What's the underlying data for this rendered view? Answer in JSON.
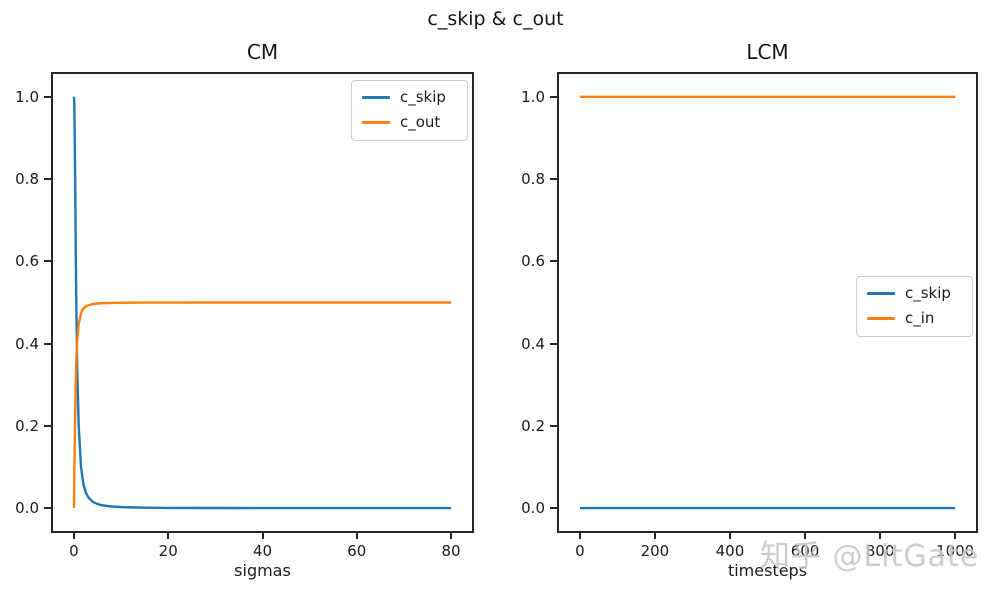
{
  "figure": {
    "suptitle": "c_skip & c_out",
    "watermark": "知乎 @LitGate",
    "colors": {
      "blue": "#1f77b4",
      "orange": "#ff7f0e",
      "text": "#1c1c1c",
      "spine": "#262626",
      "legend_border": "#cccccc",
      "watermark": "#c6c6c6"
    }
  },
  "chart_data": [
    {
      "type": "line",
      "title": "CM",
      "xlabel": "sigmas",
      "ylabel": "",
      "xlim": [
        0,
        80
      ],
      "ylim": [
        0.0,
        1.0
      ],
      "xticks": [
        0,
        20,
        40,
        60,
        80
      ],
      "yticks": [
        "0.0",
        "0.2",
        "0.4",
        "0.6",
        "0.8",
        "1.0"
      ],
      "grid": false,
      "legend_position": "upper right",
      "series": [
        {
          "name": "c_skip",
          "color": "#1f77b4",
          "x": [
            0,
            0.05,
            0.1,
            0.2,
            0.3,
            0.4,
            0.5,
            0.7,
            1,
            1.5,
            2,
            2.5,
            3,
            4,
            5,
            6,
            8,
            10,
            15,
            20,
            30,
            40,
            60,
            80
          ],
          "y": [
            1.0,
            0.9901,
            0.9615,
            0.8621,
            0.7353,
            0.6098,
            0.5,
            0.3378,
            0.2,
            0.1,
            0.0588,
            0.0385,
            0.027,
            0.0152,
            0.0099,
            0.0069,
            0.0039,
            0.0025,
            0.0011,
            0.0006,
            0.0003,
            0.0002,
            0.0001,
            0.0
          ]
        },
        {
          "name": "c_out",
          "color": "#ff7f0e",
          "x": [
            0,
            0.05,
            0.1,
            0.2,
            0.3,
            0.4,
            0.5,
            0.7,
            1,
            1.5,
            2,
            2.5,
            3,
            4,
            5,
            6,
            8,
            10,
            15,
            20,
            30,
            40,
            60,
            80
          ],
          "y": [
            0.0,
            0.0498,
            0.0981,
            0.1857,
            0.2572,
            0.3123,
            0.3536,
            0.4069,
            0.4472,
            0.4743,
            0.4851,
            0.4903,
            0.4932,
            0.4962,
            0.4975,
            0.4983,
            0.499,
            0.4994,
            0.4997,
            0.4998,
            0.4999,
            0.5,
            0.5,
            0.5
          ]
        }
      ]
    },
    {
      "type": "line",
      "title": "LCM",
      "xlabel": "timesteps",
      "ylabel": "",
      "xlim": [
        0,
        1000
      ],
      "ylim": [
        0.0,
        1.0
      ],
      "xticks": [
        0,
        200,
        400,
        600,
        800,
        1000
      ],
      "yticks": [
        "0.0",
        "0.2",
        "0.4",
        "0.6",
        "0.8",
        "1.0"
      ],
      "grid": false,
      "legend_position": "center right",
      "series": [
        {
          "name": "c_skip",
          "color": "#1f77b4",
          "x": [
            0,
            1000
          ],
          "y": [
            0.0,
            0.0
          ]
        },
        {
          "name": "c_in",
          "color": "#ff7f0e",
          "x": [
            0,
            1000
          ],
          "y": [
            1.0,
            1.0
          ]
        }
      ]
    }
  ]
}
